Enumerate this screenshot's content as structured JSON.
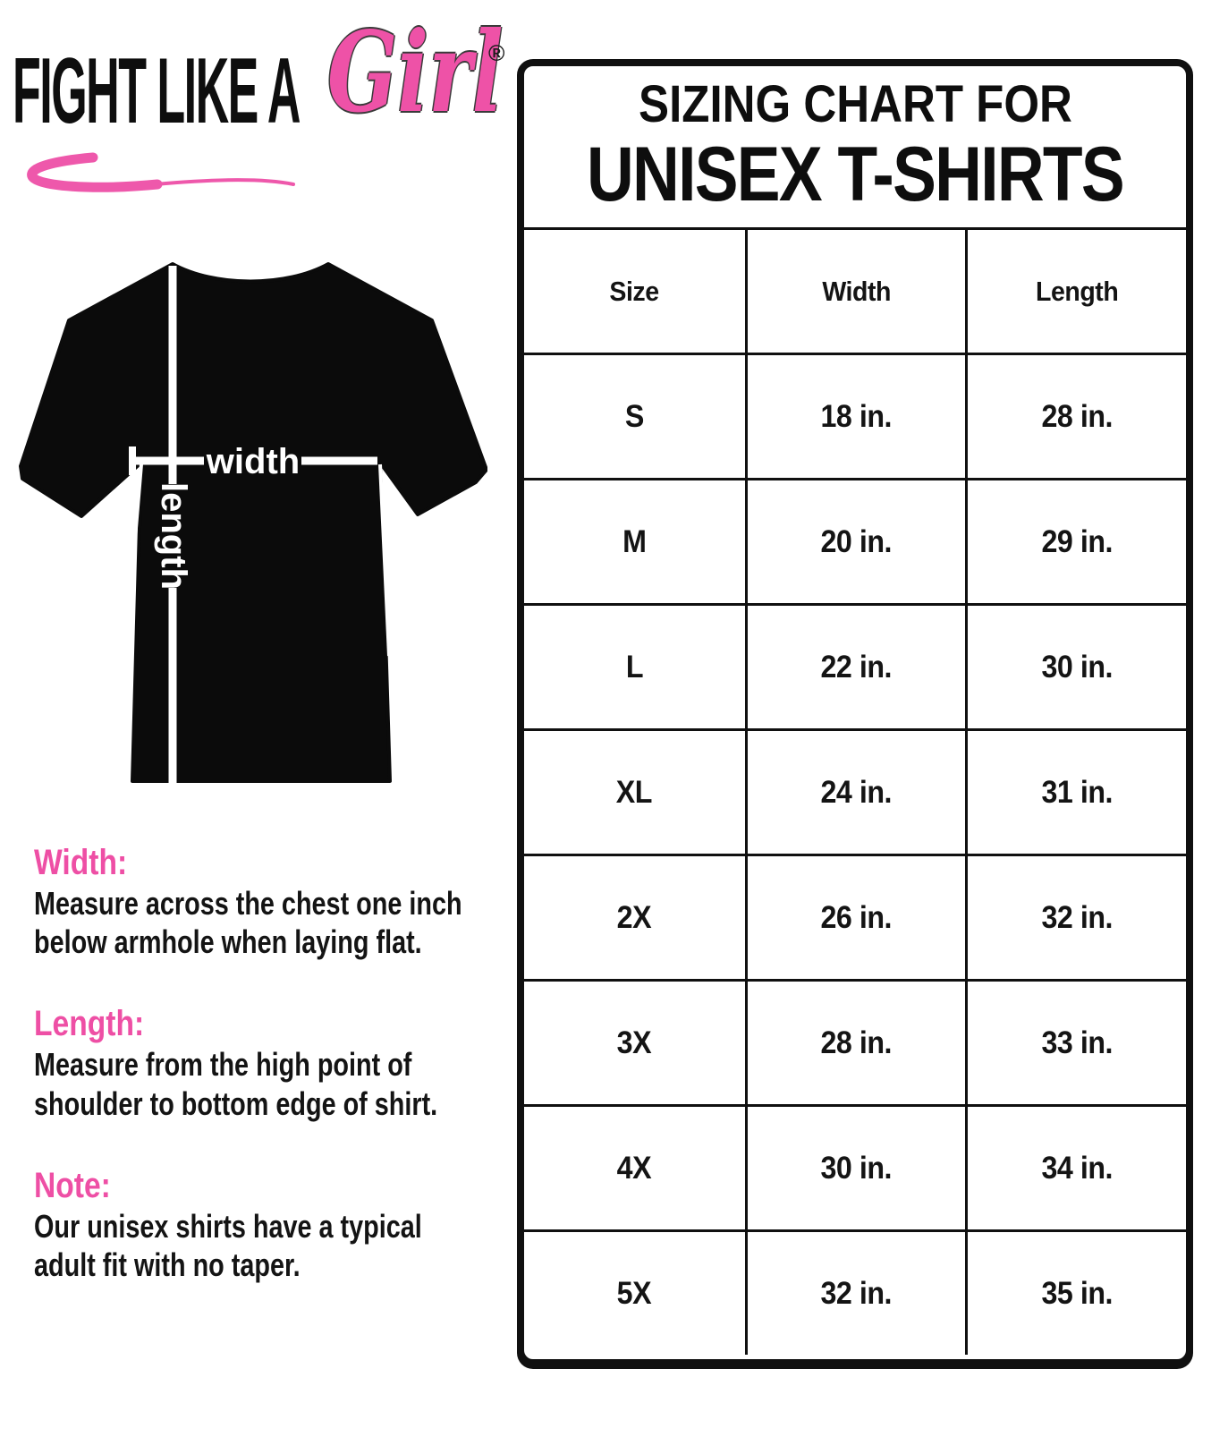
{
  "page": {
    "background": "#ffffff",
    "brand_pink": "#ee4fa5",
    "ink_black": "#101010"
  },
  "logo": {
    "text": "FIGHT LIKE A",
    "script": "Girl",
    "registered_mark": "®"
  },
  "diagram": {
    "width_label": "width",
    "length_label": "length",
    "shirt_color": "#0b0b0b"
  },
  "info_sections": [
    {
      "heading": "Width:",
      "lines": [
        "Measure across the chest one inch",
        "below armhole when laying flat."
      ]
    },
    {
      "heading": "Length:",
      "lines": [
        "Measure from the high point of",
        "shoulder to bottom edge of shirt."
      ]
    },
    {
      "heading": "Note:",
      "lines": [
        "Our unisex shirts have a typical",
        "adult fit with no taper."
      ]
    }
  ],
  "chart": {
    "title_line1": "SIZING CHART FOR",
    "title_line2": "UNISEX T-SHIRTS",
    "columns": [
      "Size",
      "Width",
      "Length"
    ],
    "rows": [
      [
        "S",
        "18 in.",
        "28 in."
      ],
      [
        "M",
        "20 in.",
        "29 in."
      ],
      [
        "L",
        "22 in.",
        "30 in."
      ],
      [
        "XL",
        "24 in.",
        "31 in."
      ],
      [
        "2X",
        "26 in.",
        "32 in."
      ],
      [
        "3X",
        "28 in.",
        "33 in."
      ],
      [
        "4X",
        "30 in.",
        "34 in."
      ],
      [
        "5X",
        "32 in.",
        "35 in."
      ]
    ]
  },
  "chart_data": {
    "type": "table",
    "title": "Sizing Chart for Unisex T-Shirts",
    "columns": [
      "Size",
      "Width",
      "Length"
    ],
    "rows": [
      [
        "S",
        "18 in.",
        "28 in."
      ],
      [
        "M",
        "20 in.",
        "29 in."
      ],
      [
        "L",
        "22 in.",
        "30 in."
      ],
      [
        "XL",
        "24 in.",
        "31 in."
      ],
      [
        "2X",
        "26 in.",
        "32 in."
      ],
      [
        "3X",
        "28 in.",
        "33 in."
      ],
      [
        "4X",
        "30 in.",
        "34 in."
      ],
      [
        "5X",
        "32 in.",
        "35 in."
      ]
    ]
  }
}
